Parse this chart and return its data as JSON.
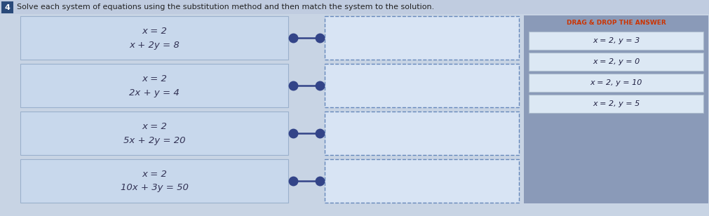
{
  "title": "Solve each system of equations using the substitution method and then match the system to the solution.",
  "title_fontsize": 9,
  "title_color": "#222222",
  "page_bg": "#c8d4e4",
  "number_box_color": "#2a4a7a",
  "number_label": "4",
  "systems": [
    {
      "line1": "x = 2",
      "line2": "x + 2y = 8"
    },
    {
      "line1": "x = 2",
      "line2": "2x + y = 4"
    },
    {
      "line1": "x = 2",
      "line2": "5x + 2y = 20"
    },
    {
      "line1": "x = 2",
      "line2": "10x + 3y = 50"
    }
  ],
  "answers_title": "DRAG & DROP THE ANSWER",
  "answers": [
    "x = 2, y = 3",
    "x = 2, y = 0",
    "x = 2, y = 10",
    "x = 2, y = 5"
  ],
  "left_box_facecolor": "#c8d8ec",
  "left_box_edge": "#9ab0cc",
  "right_box_facecolor": "#d8e4f4",
  "right_box_edge_color": "#6688bb",
  "answer_panel_bg": "#8a9ab8",
  "answer_box_facecolor": "#dce8f4",
  "answer_box_edge": "#aabbcc",
  "answers_title_color": "#cc3300",
  "dot_color": "#334488",
  "connector_color": "#334488"
}
